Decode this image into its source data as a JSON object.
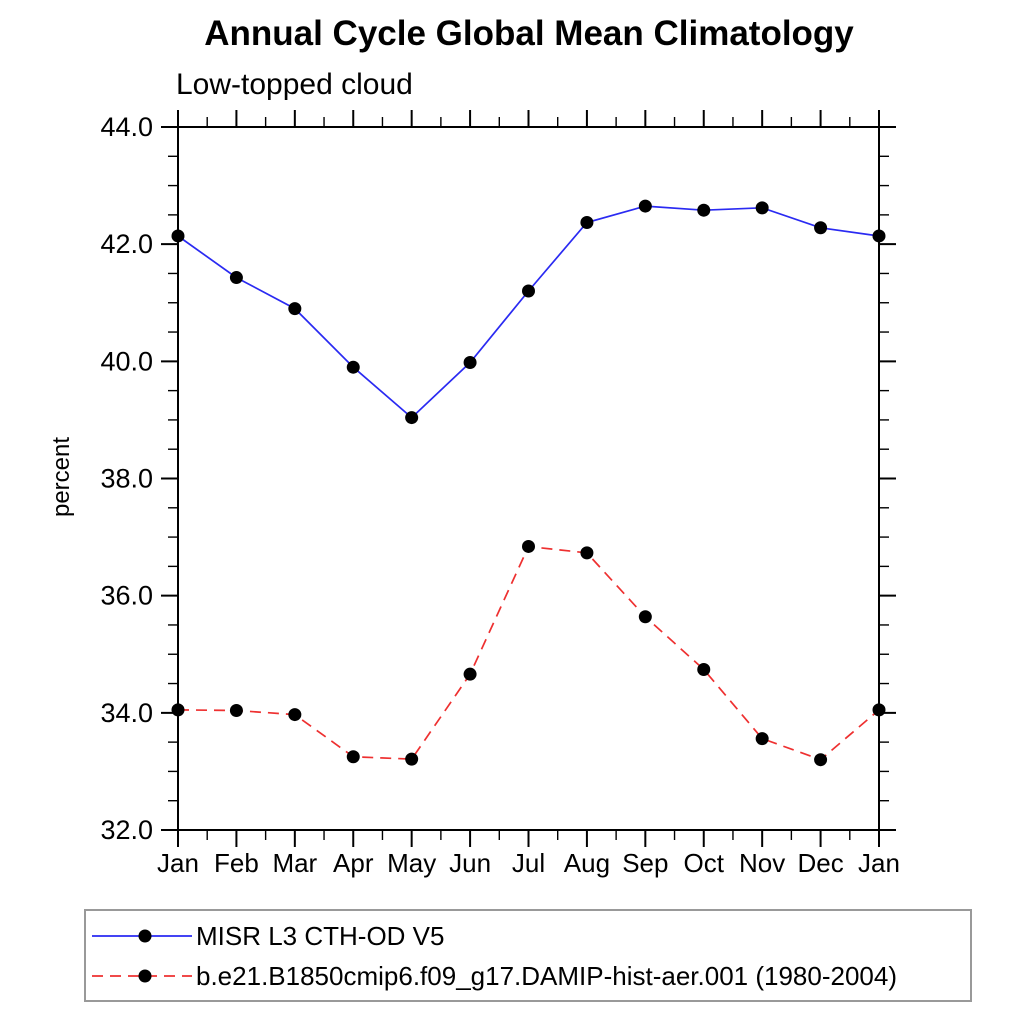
{
  "header": {
    "title": "Annual Cycle Global Mean Climatology",
    "subtitle": "Low-topped cloud"
  },
  "axes": {
    "ylabel": "percent"
  },
  "chart_data": {
    "type": "line",
    "x_categories": [
      "Jan",
      "Feb",
      "Mar",
      "Apr",
      "May",
      "Jun",
      "Jul",
      "Aug",
      "Sep",
      "Oct",
      "Nov",
      "Dec",
      "Jan"
    ],
    "ylim": [
      32.0,
      44.0
    ],
    "ytick_major_step": 2.0,
    "ytick_minor_step": 0.5,
    "xtick_minor_per_interval": 1,
    "grid": false,
    "legend_position": "below-left",
    "axis_color": "#000000",
    "marker_color": "#000000",
    "series": [
      {
        "name": "MISR L3 CTH-OD V5",
        "color": "#2a2af2",
        "line_style": "solid",
        "marker": "filled-circle",
        "values": [
          42.14,
          41.43,
          40.9,
          39.9,
          39.04,
          39.98,
          41.2,
          42.37,
          42.65,
          42.58,
          42.62,
          42.28,
          42.14
        ]
      },
      {
        "name": "b.e21.B1850cmip6.f09_g17.DAMIP-hist-aer.001 (1980-2004)",
        "color": "#ee3030",
        "line_style": "dashed",
        "marker": "filled-circle",
        "values": [
          34.05,
          34.04,
          33.97,
          33.25,
          33.21,
          34.66,
          36.84,
          36.73,
          35.64,
          34.74,
          33.56,
          33.2,
          34.05
        ]
      }
    ]
  }
}
